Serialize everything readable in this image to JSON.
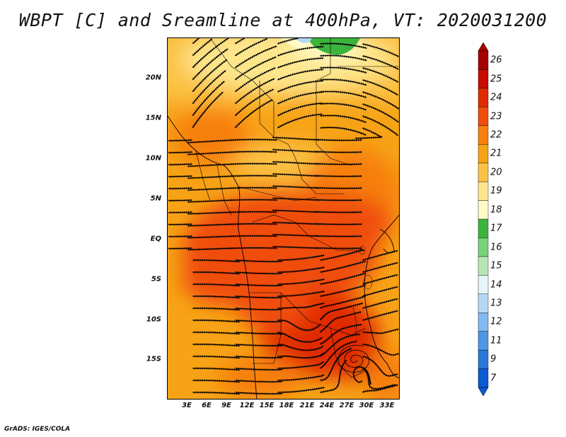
{
  "title": "WBPT [C] and Sreamline at 400hPa, VT: 2020031200",
  "credit": "GrADS: IGES/COLA",
  "map": {
    "description_variable": "Wet-bulb potential temperature with streamlines",
    "lat_labels": [
      "20N",
      "15N",
      "10N",
      "5N",
      "EQ",
      "5S",
      "10S",
      "15S"
    ],
    "lon_labels": [
      "3E",
      "6E",
      "9E",
      "12E",
      "15E",
      "18E",
      "21E",
      "24E",
      "27E",
      "30E",
      "33E"
    ]
  },
  "colorbar": {
    "labels": [
      "26",
      "25",
      "24",
      "23",
      "22",
      "21",
      "20",
      "19",
      "18",
      "17",
      "16",
      "15",
      "14",
      "13",
      "12",
      "11",
      "9",
      "7"
    ],
    "colors": [
      "#a50000",
      "#c80a00",
      "#e02a00",
      "#f04e0a",
      "#f77f0b",
      "#f7a317",
      "#fbc244",
      "#fde68c",
      "#fffbc8",
      "#3cb43c",
      "#78d278",
      "#b4e6b4",
      "#e6f6f6",
      "#b4d7f5",
      "#82b9f0",
      "#5096e6",
      "#2878dc",
      "#0a5ad2"
    ]
  }
}
